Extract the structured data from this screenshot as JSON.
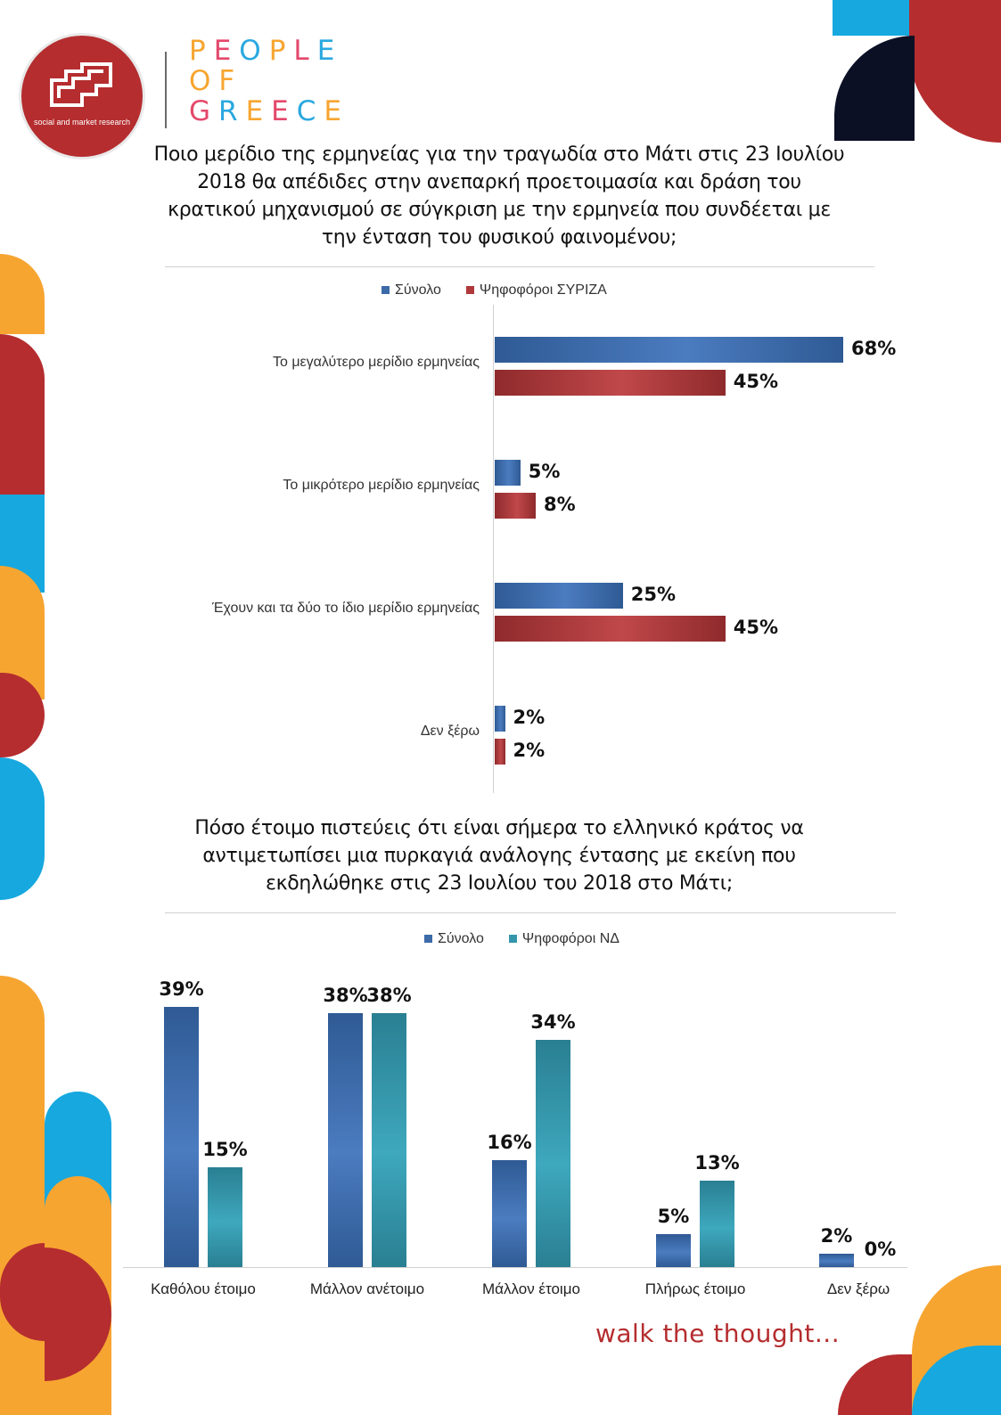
{
  "brand": {
    "logo_caption": "social and market research",
    "wordmark_lines": [
      "PEOPLE",
      "OF",
      "GREECE"
    ],
    "wordmark_colors": [
      "#f7a531",
      "#e4486b",
      "#2aa8df",
      "#f7a531",
      "#e4486b",
      "#2aa8df",
      "#f7a531"
    ],
    "tagline": "walk the thought..."
  },
  "colors": {
    "total": "#3d6aa8",
    "syriza": "#b0393b",
    "nd": "#3596ab",
    "brand_red": "#b52d2f",
    "brand_orange": "#f7a531",
    "brand_blue": "#16a8df",
    "brand_navy": "#0b1025"
  },
  "chart_data": [
    {
      "type": "bar",
      "orientation": "horizontal",
      "title": "Ποιο μερίδιο της ερμηνείας για την τραγωδία στο Μάτι στις 23 Ιουλίου 2018 θα απέδιδες στην ανεπαρκή προετοιμασία και δράση του κρατικού μηχανισμού σε σύγκριση με την  ερμηνεία που συνδέεται με την ένταση του φυσικού φαινομένου;",
      "legend_position": "top",
      "categories": [
        "Το μεγαλύτερο μερίδιο ερμηνείας",
        "Το μικρότερο μερίδιο ερμηνείας",
        "Έχουν και τα δύο το ίδιο μερίδιο ερμηνείας",
        "Δεν ξέρω"
      ],
      "series": [
        {
          "name": "Σύνολο",
          "values": [
            68,
            5,
            25,
            2
          ],
          "labels": [
            "68%",
            "5%",
            "25%",
            "2%"
          ]
        },
        {
          "name": "Ψηφοφόροι ΣΥΡΙΖΑ",
          "values": [
            45,
            8,
            45,
            2
          ],
          "labels": [
            "45%",
            "8%",
            "45%",
            "2%"
          ]
        }
      ],
      "xlim": [
        0,
        70
      ],
      "grid": false
    },
    {
      "type": "bar",
      "orientation": "vertical",
      "title": "Πόσο έτοιμο πιστεύεις ότι είναι σήμερα το ελληνικό κράτος να αντιμετωπίσει μια πυρκαγιά ανάλογης έντασης με εκείνη που εκδηλώθηκε στις 23 Ιουλίου του 2018 στο Μάτι;",
      "legend_position": "top",
      "categories": [
        "Καθόλου έτοιμο",
        "Μάλλον ανέτοιμο",
        "Μάλλον έτοιμο",
        "Πλήρως έτοιμο",
        "Δεν ξέρω"
      ],
      "series": [
        {
          "name": "Σύνολο",
          "values": [
            39,
            38,
            16,
            5,
            2
          ],
          "labels": [
            "39%",
            "38%",
            "16%",
            "5%",
            "2%"
          ]
        },
        {
          "name": "Ψηφοφόροι ΝΔ",
          "values": [
            15,
            38,
            34,
            13,
            0
          ],
          "labels": [
            "15%",
            "38%",
            "34%",
            "13%",
            "0%"
          ]
        }
      ],
      "ylim": [
        0,
        40
      ],
      "grid": false
    }
  ]
}
